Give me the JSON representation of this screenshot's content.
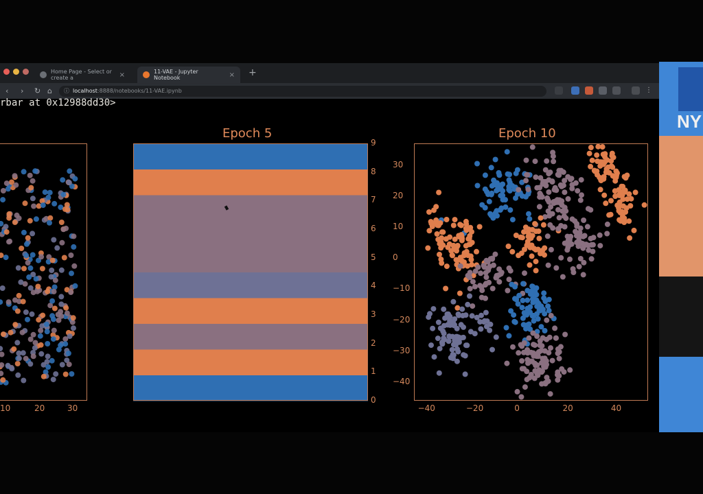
{
  "browser": {
    "tabs": [
      {
        "label": "Home Page - Select or create a",
        "active": false
      },
      {
        "label": "11-VAE - Jupyter Notebook",
        "active": true
      }
    ],
    "url_host": "localhost",
    "url_path": ":8888/notebooks/11-VAE.ipynb",
    "new_tab": "+",
    "close": "×"
  },
  "output_text": "rbar at 0x12988dd30>",
  "colors": {
    "blue": "#2f6fb3",
    "orange": "#e07f4d",
    "mauve": "#8a7080",
    "slate": "#6e7195",
    "frame": "#c27c55",
    "text": "#e08a5a"
  },
  "chart_data": [
    {
      "type": "scatter",
      "title": "",
      "xticks": [
        "10",
        "20",
        "30"
      ],
      "series": [
        {
          "color": "#2f6fb3"
        },
        {
          "color": "#e07f4d"
        },
        {
          "color": "#8a7080"
        },
        {
          "color": "#6e7195"
        }
      ]
    },
    {
      "type": "heatmap",
      "title": "Epoch 5",
      "colorbar_ticks": [
        "0",
        "1",
        "2",
        "3",
        "4",
        "5",
        "6",
        "7",
        "8",
        "9"
      ],
      "bands_bottom_to_top": [
        "#2f6fb3",
        "#e07f4d",
        "#8a7080",
        "#e07f4d",
        "#6e7195",
        "#8a7080",
        "#8a7080",
        "#8a7080",
        "#e07f4d",
        "#2f6fb3"
      ]
    },
    {
      "type": "scatter",
      "title": "Epoch 10",
      "xticks": [
        "−40",
        "−20",
        "0",
        "20",
        "40"
      ],
      "yticks": [
        "30",
        "20",
        "10",
        "0",
        "−10",
        "−20",
        "−30",
        "−40"
      ],
      "xlim": [
        -45,
        52
      ],
      "ylim": [
        -46,
        37
      ],
      "clusters": [
        {
          "color": "#2f6fb3",
          "cx": -8,
          "cy": 22,
          "sx": 6,
          "sy": 4,
          "n": 70
        },
        {
          "color": "#e07f4d",
          "cx": 34,
          "cy": 30,
          "sx": 3,
          "sy": 3,
          "n": 45
        },
        {
          "color": "#e07f4d",
          "cx": 41,
          "cy": 18,
          "sx": 3,
          "sy": 5,
          "n": 55
        },
        {
          "color": "#8a7080",
          "cx": 12,
          "cy": 22,
          "sx": 6,
          "sy": 6,
          "n": 80
        },
        {
          "color": "#e07f4d",
          "cx": -27,
          "cy": 3,
          "sx": 5,
          "sy": 6,
          "n": 80
        },
        {
          "color": "#8a7080",
          "cx": -13,
          "cy": -5,
          "sx": 6,
          "sy": 4,
          "n": 50
        },
        {
          "color": "#e07f4d",
          "cx": 4,
          "cy": 5,
          "sx": 4,
          "sy": 4,
          "n": 40
        },
        {
          "color": "#8a7080",
          "cx": 22,
          "cy": 8,
          "sx": 5,
          "sy": 6,
          "n": 70
        },
        {
          "color": "#2f6fb3",
          "cx": 3,
          "cy": -17,
          "sx": 4,
          "sy": 5,
          "n": 70
        },
        {
          "color": "#6e7195",
          "cx": -30,
          "cy": -24,
          "sx": 4,
          "sy": 5,
          "n": 75
        },
        {
          "color": "#8a7080",
          "cx": 7,
          "cy": -33,
          "sx": 6,
          "sy": 5,
          "n": 90
        },
        {
          "color": "#e07f4d",
          "cx": -36,
          "cy": 13,
          "sx": 2,
          "sy": 3,
          "n": 12
        },
        {
          "color": "#6e7195",
          "cx": -16,
          "cy": -22,
          "sx": 3,
          "sy": 4,
          "n": 15
        }
      ]
    }
  ]
}
